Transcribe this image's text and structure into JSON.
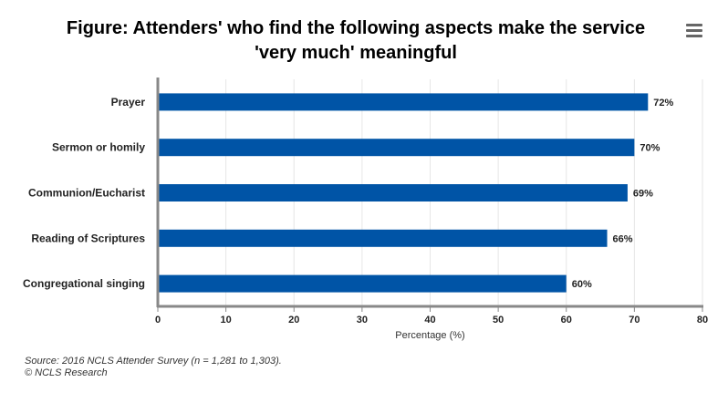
{
  "title_line1": "Figure: Attenders' who find the following aspects make the service",
  "title_line2": "'very much' meaningful",
  "menu_icon": "hamburger-menu-icon",
  "source": "Source: 2016 NCLS Attender Survey (n = 1,281 to 1,303).",
  "copyright": "© NCLS Research",
  "chart_data": {
    "type": "bar",
    "orientation": "horizontal",
    "categories": [
      "Prayer",
      "Sermon or homily",
      "Communion/Eucharist",
      "Reading of Scriptures",
      "Congregational singing"
    ],
    "values": [
      72,
      70,
      69,
      66,
      60
    ],
    "data_labels": [
      "72%",
      "70%",
      "69%",
      "66%",
      "60%"
    ],
    "xlabel": "Percentage (%)",
    "xlim": [
      0,
      80
    ],
    "xticks": [
      0,
      10,
      20,
      30,
      40,
      50,
      60,
      70,
      80
    ],
    "grid": true,
    "legend": "none",
    "bar_color": "#0054a6",
    "axis_color": "#888888",
    "grid_color": "#e6e6e6"
  }
}
